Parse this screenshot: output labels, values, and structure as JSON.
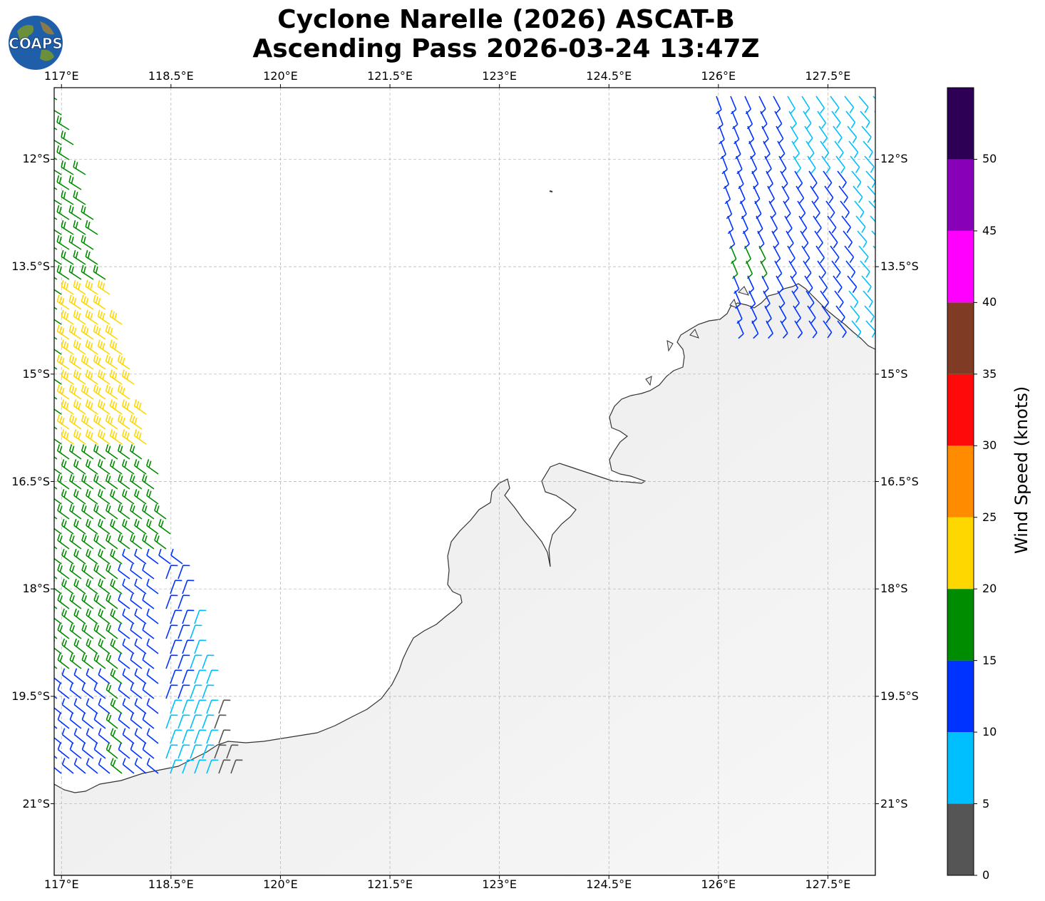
{
  "title": {
    "line1": "Cyclone Narelle (2026) ASCAT-B",
    "line2": "Ascending Pass 2026-03-24 13:47Z"
  },
  "logo": {
    "text": "COAPS",
    "icon": "globe-logo-icon"
  },
  "map": {
    "lon_range": [
      116.9,
      128.15
    ],
    "lat_range": [
      -22.0,
      -11.0
    ],
    "lon_ticks": [
      "117°E",
      "118.5°E",
      "120°E",
      "121.5°E",
      "123°E",
      "124.5°E",
      "126°E",
      "127.5°E"
    ],
    "lat_ticks": [
      "12°S",
      "13.5°S",
      "15°S",
      "16.5°S",
      "18°S",
      "19.5°S",
      "21°S"
    ],
    "gridlines": true,
    "land_color": "#f0f0f0",
    "ocean_color": "#ffffff",
    "coastline_color": "#333333"
  },
  "colorbar": {
    "title": "Wind Speed (knots)",
    "tick_labels": [
      "0",
      "5",
      "10",
      "15",
      "20",
      "25",
      "30",
      "35",
      "40",
      "45",
      "50"
    ],
    "bins": [
      {
        "from": 0,
        "to": 5,
        "color": "#555555"
      },
      {
        "from": 5,
        "to": 10,
        "color": "#00bfff"
      },
      {
        "from": 10,
        "to": 15,
        "color": "#0033ff"
      },
      {
        "from": 15,
        "to": 20,
        "color": "#008c00"
      },
      {
        "from": 20,
        "to": 25,
        "color": "#ffd700"
      },
      {
        "from": 25,
        "to": 30,
        "color": "#ff8c00"
      },
      {
        "from": 30,
        "to": 35,
        "color": "#ff0a0a"
      },
      {
        "from": 35,
        "to": 40,
        "color": "#7f3b23"
      },
      {
        "from": 40,
        "to": 45,
        "color": "#ff00ff"
      },
      {
        "from": 45,
        "to": 50,
        "color": "#8800b8"
      },
      {
        "from": 50,
        "to": 55,
        "color": "#2e0055"
      }
    ]
  },
  "wind_swaths": [
    {
      "name": "west",
      "lon": [
        116.9,
        118.1,
        119.3
      ],
      "lat": [
        -11.0,
        -16.4,
        -20.6
      ]
    },
    {
      "name": "northeast",
      "lon": [
        125.7,
        128.15
      ],
      "lat": [
        -11.0,
        -14.4
      ]
    }
  ]
}
